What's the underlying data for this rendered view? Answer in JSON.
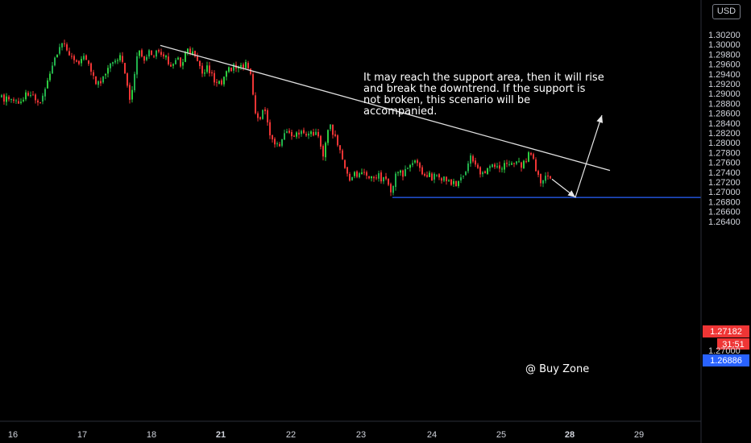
{
  "currency_label": "USD",
  "annotation_text": {
    "line1": "It may reach the support area, then it will rise",
    "line2": "and break the downtrend. If the support is",
    "line3": "not broken, this scenario will be",
    "line4": "accompanied."
  },
  "buy_zone_label": "@ Buy Zone",
  "price_tags": {
    "last_price": "1.27182",
    "countdown": "31:51",
    "partial_under": "1.27000",
    "buy_zone_price": "1.26886"
  },
  "colors": {
    "background": "#000000",
    "up_candle": "#26a69a",
    "up_candle_bright": "#2ecc40",
    "down_candle": "#ef3535",
    "trendline": "#e0e0e0",
    "support_line": "#2962ff",
    "last_price_tag": "#ef3535",
    "buy_zone_tag": "#2962ff"
  },
  "chart_data": {
    "type": "candlestick",
    "symbol_currency": "USD",
    "y_ticks": [
      "1.30200",
      "1.30000",
      "1.29800",
      "1.29600",
      "1.29400",
      "1.29200",
      "1.29000",
      "1.28800",
      "1.28600",
      "1.28400",
      "1.28200",
      "1.28000",
      "1.27800",
      "1.27600",
      "1.27400",
      "1.27200",
      "1.27000",
      "1.26800",
      "1.26600",
      "1.26400"
    ],
    "ylim": [
      1.262,
      1.3036
    ],
    "x_ticks": [
      {
        "label": "16",
        "bold": false
      },
      {
        "label": "17",
        "bold": false
      },
      {
        "label": "18",
        "bold": false
      },
      {
        "label": "21",
        "bold": true
      },
      {
        "label": "22",
        "bold": false
      },
      {
        "label": "23",
        "bold": false
      },
      {
        "label": "24",
        "bold": false
      },
      {
        "label": "25",
        "bold": false
      },
      {
        "label": "28",
        "bold": true
      },
      {
        "label": "29",
        "bold": false
      }
    ],
    "price_path": [
      [
        0,
        1.2892
      ],
      [
        4,
        1.2888
      ],
      [
        8,
        1.2894
      ],
      [
        12,
        1.2884
      ],
      [
        16,
        1.2886
      ],
      [
        20,
        1.2882
      ],
      [
        24,
        1.288
      ],
      [
        28,
        1.2886
      ],
      [
        32,
        1.2902
      ],
      [
        36,
        1.2898
      ],
      [
        40,
        1.2894
      ],
      [
        44,
        1.289
      ],
      [
        48,
        1.2886
      ],
      [
        52,
        1.2896
      ],
      [
        56,
        1.2912
      ],
      [
        60,
        1.2934
      ],
      [
        64,
        1.2956
      ],
      [
        68,
        1.2978
      ],
      [
        72,
        1.2988
      ],
      [
        76,
        1.2996
      ],
      [
        80,
        1.3
      ],
      [
        84,
        1.2986
      ],
      [
        88,
        1.2974
      ],
      [
        92,
        1.2968
      ],
      [
        96,
        1.2958
      ],
      [
        100,
        1.2966
      ],
      [
        104,
        1.2976
      ],
      [
        108,
        1.2962
      ],
      [
        112,
        1.2946
      ],
      [
        116,
        1.293
      ],
      [
        120,
        1.2918
      ],
      [
        124,
        1.292
      ],
      [
        128,
        1.2936
      ],
      [
        132,
        1.2952
      ],
      [
        136,
        1.2964
      ],
      [
        140,
        1.2972
      ],
      [
        144,
        1.2962
      ],
      [
        148,
        1.2974
      ],
      [
        152,
        1.2966
      ],
      [
        156,
        1.2928
      ],
      [
        160,
        1.2886
      ],
      [
        164,
        1.292
      ],
      [
        168,
        1.2962
      ],
      [
        172,
        1.299
      ],
      [
        176,
        1.2976
      ],
      [
        180,
        1.2972
      ],
      [
        184,
        1.2982
      ],
      [
        188,
        1.2976
      ],
      [
        192,
        1.298
      ],
      [
        196,
        1.2986
      ],
      [
        200,
        1.2984
      ],
      [
        204,
        1.2976
      ],
      [
        208,
        1.2958
      ],
      [
        212,
        1.2954
      ],
      [
        216,
        1.297
      ],
      [
        220,
        1.2974
      ],
      [
        224,
        1.2956
      ],
      [
        228,
        1.2978
      ],
      [
        232,
        1.299
      ],
      [
        236,
        1.2984
      ],
      [
        240,
        1.2978
      ],
      [
        244,
        1.2962
      ],
      [
        248,
        1.2948
      ],
      [
        252,
        1.2946
      ],
      [
        256,
        1.296
      ],
      [
        260,
        1.2944
      ],
      [
        264,
        1.293
      ],
      [
        268,
        1.2924
      ],
      [
        272,
        1.2918
      ],
      [
        276,
        1.2928
      ],
      [
        280,
        1.2942
      ],
      [
        284,
        1.295
      ],
      [
        288,
        1.2954
      ],
      [
        292,
        1.2952
      ],
      [
        296,
        1.2956
      ],
      [
        300,
        1.2958
      ],
      [
        304,
        1.2962
      ],
      [
        308,
        1.2956
      ],
      [
        312,
        1.291
      ],
      [
        316,
        1.286
      ],
      [
        320,
        1.2846
      ],
      [
        324,
        1.2862
      ],
      [
        328,
        1.2864
      ],
      [
        332,
        1.2832
      ],
      [
        336,
        1.2804
      ],
      [
        340,
        1.2796
      ],
      [
        344,
        1.2794
      ],
      [
        348,
        1.28
      ],
      [
        352,
        1.2814
      ],
      [
        356,
        1.2818
      ],
      [
        360,
        1.2816
      ],
      [
        364,
        1.2818
      ],
      [
        368,
        1.2822
      ],
      [
        372,
        1.2818
      ],
      [
        376,
        1.2822
      ],
      [
        380,
        1.2818
      ],
      [
        384,
        1.282
      ],
      [
        388,
        1.2816
      ],
      [
        392,
        1.2818
      ],
      [
        396,
        1.2796
      ],
      [
        400,
        1.2774
      ],
      [
        404,
        1.2812
      ],
      [
        408,
        1.2846
      ],
      [
        412,
        1.2818
      ],
      [
        416,
        1.2806
      ],
      [
        420,
        1.2796
      ],
      [
        424,
        1.2772
      ],
      [
        428,
        1.2738
      ],
      [
        432,
        1.2728
      ],
      [
        436,
        1.273
      ],
      [
        440,
        1.2736
      ],
      [
        444,
        1.2734
      ],
      [
        448,
        1.2738
      ],
      [
        452,
        1.2734
      ],
      [
        456,
        1.2732
      ],
      [
        460,
        1.273
      ],
      [
        464,
        1.2728
      ],
      [
        468,
        1.2732
      ],
      [
        472,
        1.2728
      ],
      [
        476,
        1.2726
      ],
      [
        480,
        1.2714
      ],
      [
        484,
        1.2704
      ],
      [
        488,
        1.2722
      ],
      [
        492,
        1.2742
      ],
      [
        496,
        1.2742
      ],
      [
        500,
        1.2734
      ],
      [
        504,
        1.2746
      ],
      [
        508,
        1.2756
      ],
      [
        512,
        1.2762
      ],
      [
        516,
        1.2758
      ],
      [
        520,
        1.2746
      ],
      [
        524,
        1.2734
      ],
      [
        528,
        1.2728
      ],
      [
        532,
        1.2734
      ],
      [
        536,
        1.2728
      ],
      [
        540,
        1.2736
      ],
      [
        544,
        1.273
      ],
      [
        548,
        1.2726
      ],
      [
        552,
        1.2724
      ],
      [
        556,
        1.2722
      ],
      [
        560,
        1.2716
      ],
      [
        564,
        1.2714
      ],
      [
        568,
        1.2724
      ],
      [
        572,
        1.2736
      ],
      [
        576,
        1.2742
      ],
      [
        580,
        1.2758
      ],
      [
        584,
        1.277
      ],
      [
        588,
        1.2762
      ],
      [
        592,
        1.275
      ],
      [
        596,
        1.274
      ],
      [
        600,
        1.2732
      ],
      [
        604,
        1.2742
      ],
      [
        608,
        1.2756
      ],
      [
        612,
        1.276
      ],
      [
        616,
        1.2746
      ],
      [
        620,
        1.2748
      ],
      [
        624,
        1.2752
      ],
      [
        628,
        1.2758
      ],
      [
        632,
        1.2756
      ],
      [
        636,
        1.2752
      ],
      [
        640,
        1.2756
      ],
      [
        644,
        1.2758
      ],
      [
        648,
        1.2754
      ],
      [
        652,
        1.2764
      ],
      [
        656,
        1.2784
      ],
      [
        660,
        1.2768
      ],
      [
        664,
        1.274
      ],
      [
        668,
        1.2724
      ],
      [
        672,
        1.2718
      ],
      [
        676,
        1.2734
      ],
      [
        680,
        1.2728
      ],
      [
        684,
        1.2718
      ]
    ],
    "trendline": {
      "from": [
        199,
        1.2998
      ],
      "to": [
        757,
        1.27435
      ]
    },
    "support_level": 1.26886,
    "projection_path": [
      [
        685,
        1.2726
      ],
      [
        714,
        1.2689
      ],
      [
        747,
        1.2856
      ]
    ],
    "last_price": 1.27182
  }
}
